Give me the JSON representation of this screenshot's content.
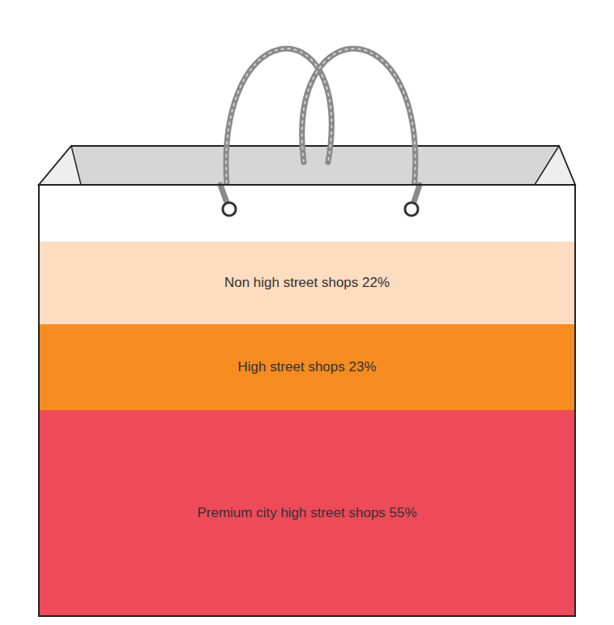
{
  "chart_data": {
    "type": "bar",
    "stacked": true,
    "data_labels": true,
    "tick_labels": false,
    "categories": [
      null
    ],
    "series": [
      {
        "color": "#ef4a5a",
        "values": [
          55
        ],
        "value_labels": [
          "Premium city high street shops 55%"
        ]
      },
      {
        "color": "#f68b1f",
        "values": [
          23
        ],
        "value_labels": [
          "High street shops 23%"
        ]
      },
      {
        "color": "#fddcbf",
        "values": [
          22
        ],
        "value_labels": [
          "Non high street shops 22%"
        ]
      }
    ]
  }
}
